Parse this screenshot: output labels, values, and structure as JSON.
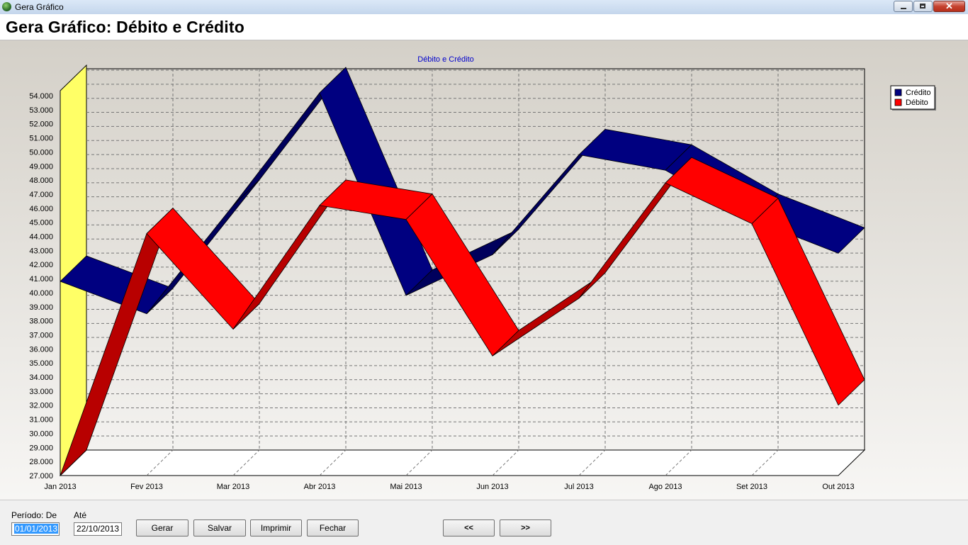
{
  "window": {
    "title": "Gera Gráfico"
  },
  "header": {
    "title": "Gera Gráfico: Débito e Crédito"
  },
  "chart_data": {
    "type": "line",
    "style": "3d-ribbon",
    "title": "Débito e Crédito",
    "categories": [
      "Jan 2013",
      "Fev 2013",
      "Mar 2013",
      "Abr 2013",
      "Mai 2013",
      "Jun 2013",
      "Jul 2013",
      "Ago 2013",
      "Set 2013",
      "Out 2013"
    ],
    "yticks": [
      "27.000",
      "28.000",
      "29.000",
      "30.000",
      "31.000",
      "32.000",
      "33.000",
      "34.000",
      "35.000",
      "36.000",
      "37.000",
      "38.000",
      "39.000",
      "40.000",
      "41.000",
      "42.000",
      "43.000",
      "44.000",
      "45.000",
      "46.000",
      "47.000",
      "48.000",
      "49.000",
      "50.000",
      "51.000",
      "52.000",
      "53.000",
      "54.000"
    ],
    "ylim": [
      27000,
      54000
    ],
    "grid": true,
    "legend_position": "top-right",
    "series": [
      {
        "name": "Crédito",
        "color": "#000080",
        "values": [
          40800,
          38500,
          46200,
          54200,
          39800,
          42700,
          49800,
          48700,
          45200,
          42800
        ]
      },
      {
        "name": "Débito",
        "color": "#ff0000",
        "values": [
          27000,
          44200,
          37400,
          46200,
          45200,
          35500,
          39600,
          47800,
          44900,
          32000
        ]
      }
    ]
  },
  "form": {
    "period_from_label": "Período: De",
    "period_to_label": "Até",
    "from_value": "01/01/2013",
    "to_value": "22/10/2013"
  },
  "buttons": {
    "gerar": "Gerar",
    "salvar": "Salvar",
    "imprimir": "Imprimir",
    "fechar": "Fechar",
    "prev": "<<",
    "next": ">>"
  }
}
